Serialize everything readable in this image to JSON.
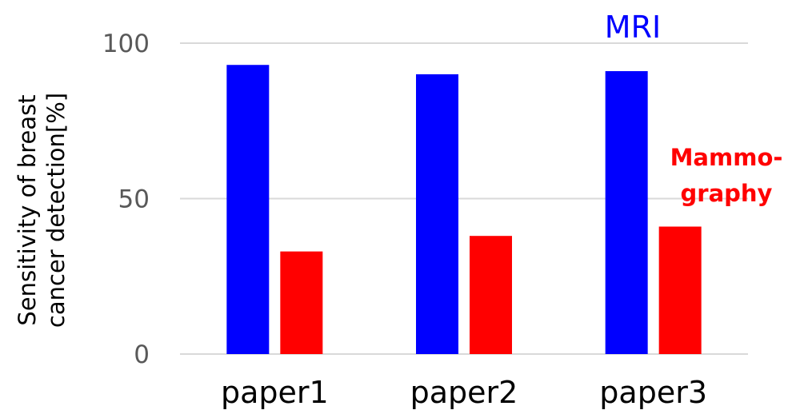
{
  "chart_data": {
    "type": "bar",
    "categories": [
      "paper1",
      "paper2",
      "paper3"
    ],
    "series": [
      {
        "name": "MRI",
        "values": [
          93,
          90,
          91
        ],
        "color": "#0000FF"
      },
      {
        "name": "Mammo-graphy",
        "values": [
          33,
          38,
          41
        ],
        "color": "#FF0000"
      }
    ],
    "ylabel": [
      "Sensitivity of breast",
      "cancer detection[%]"
    ],
    "ylim": [
      0,
      100
    ],
    "yticks": [
      0,
      50,
      100
    ],
    "grid": true,
    "annotations": {
      "mri": "MRI",
      "mammography_line1": "Mammo-",
      "mammography_line2": "graphy"
    }
  }
}
